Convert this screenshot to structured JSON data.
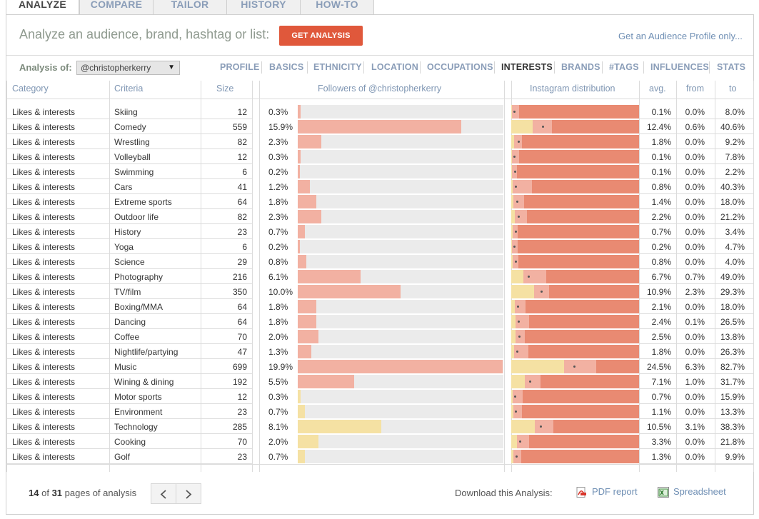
{
  "tabs": [
    {
      "label": "ANALYZE",
      "active": true
    },
    {
      "label": "COMPARE",
      "active": false
    },
    {
      "label": "TAILOR",
      "active": false
    },
    {
      "label": "HISTORY",
      "active": false
    },
    {
      "label": "HOW-TO",
      "active": false
    }
  ],
  "header": {
    "title": "Analyze an audience, brand, hashtag or list:",
    "button_label": "GET ANALYSIS",
    "profile_link": "Get an Audience Profile only..."
  },
  "analysis": {
    "label": "Analysis of:",
    "selected": "@christopherkerry"
  },
  "nav": [
    {
      "label": "PROFILE",
      "active": false
    },
    {
      "label": "BASICS",
      "active": false
    },
    {
      "label": "ETHNICITY",
      "active": false
    },
    {
      "label": "LOCATION",
      "active": false
    },
    {
      "label": "OCCUPATIONS",
      "active": false
    },
    {
      "label": "INTERESTS",
      "active": true
    },
    {
      "label": "BRANDS",
      "active": false
    },
    {
      "label": "#TAGS",
      "active": false
    },
    {
      "label": "INFLUENCES",
      "active": false
    },
    {
      "label": "STATS",
      "active": false
    }
  ],
  "columns": {
    "category": "Category",
    "criteria": "Criteria",
    "size": "Size",
    "followers": "Followers of @christopherkerry",
    "distribution": "Instagram distribution",
    "avg": "avg.",
    "from": "from",
    "to": "to"
  },
  "colors": {
    "high": "#e98a72",
    "high_track_light": "#f2b1a2",
    "low": "#f5e1a3",
    "accent": "#e0583b",
    "link": "#6f8fb4"
  },
  "rows": [
    {
      "category": "Likes & interests",
      "criteria": "Skiing",
      "size": "12",
      "pct": "0.3%",
      "value": 0.3,
      "high": true,
      "avg": "0.1%",
      "from": "0.0%",
      "to": "8.0%"
    },
    {
      "category": "Likes & interests",
      "criteria": "Comedy",
      "size": "559",
      "pct": "15.9%",
      "value": 15.9,
      "high": true,
      "avg": "12.4%",
      "from": "0.6%",
      "to": "40.6%"
    },
    {
      "category": "Likes & interests",
      "criteria": "Wrestling",
      "size": "82",
      "pct": "2.3%",
      "value": 2.3,
      "high": true,
      "avg": "1.8%",
      "from": "0.0%",
      "to": "9.2%"
    },
    {
      "category": "Likes & interests",
      "criteria": "Volleyball",
      "size": "12",
      "pct": "0.3%",
      "value": 0.3,
      "high": true,
      "avg": "0.1%",
      "from": "0.0%",
      "to": "7.8%"
    },
    {
      "category": "Likes & interests",
      "criteria": "Swimming",
      "size": "6",
      "pct": "0.2%",
      "value": 0.2,
      "high": true,
      "avg": "0.1%",
      "from": "0.0%",
      "to": "2.2%"
    },
    {
      "category": "Likes & interests",
      "criteria": "Cars",
      "size": "41",
      "pct": "1.2%",
      "value": 1.2,
      "high": true,
      "avg": "0.8%",
      "from": "0.0%",
      "to": "40.3%"
    },
    {
      "category": "Likes & interests",
      "criteria": "Extreme sports",
      "size": "64",
      "pct": "1.8%",
      "value": 1.8,
      "high": true,
      "avg": "1.4%",
      "from": "0.0%",
      "to": "18.0%"
    },
    {
      "category": "Likes & interests",
      "criteria": "Outdoor life",
      "size": "82",
      "pct": "2.3%",
      "value": 2.3,
      "high": true,
      "avg": "2.2%",
      "from": "0.0%",
      "to": "21.2%"
    },
    {
      "category": "Likes & interests",
      "criteria": "History",
      "size": "23",
      "pct": "0.7%",
      "value": 0.7,
      "high": true,
      "avg": "0.7%",
      "from": "0.0%",
      "to": "3.4%"
    },
    {
      "category": "Likes & interests",
      "criteria": "Yoga",
      "size": "6",
      "pct": "0.2%",
      "value": 0.2,
      "high": true,
      "avg": "0.2%",
      "from": "0.0%",
      "to": "4.7%"
    },
    {
      "category": "Likes & interests",
      "criteria": "Science",
      "size": "29",
      "pct": "0.8%",
      "value": 0.8,
      "high": true,
      "avg": "0.8%",
      "from": "0.0%",
      "to": "4.0%"
    },
    {
      "category": "Likes & interests",
      "criteria": "Photography",
      "size": "216",
      "pct": "6.1%",
      "value": 6.1,
      "high": true,
      "avg": "6.7%",
      "from": "0.7%",
      "to": "49.0%"
    },
    {
      "category": "Likes & interests",
      "criteria": "TV/film",
      "size": "350",
      "pct": "10.0%",
      "value": 10.0,
      "high": true,
      "avg": "10.9%",
      "from": "2.3%",
      "to": "29.3%"
    },
    {
      "category": "Likes & interests",
      "criteria": "Boxing/MMA",
      "size": "64",
      "pct": "1.8%",
      "value": 1.8,
      "high": true,
      "avg": "2.1%",
      "from": "0.0%",
      "to": "18.0%"
    },
    {
      "category": "Likes & interests",
      "criteria": "Dancing",
      "size": "64",
      "pct": "1.8%",
      "value": 1.8,
      "high": true,
      "avg": "2.4%",
      "from": "0.1%",
      "to": "26.5%"
    },
    {
      "category": "Likes & interests",
      "criteria": "Coffee",
      "size": "70",
      "pct": "2.0%",
      "value": 2.0,
      "high": true,
      "avg": "2.5%",
      "from": "0.0%",
      "to": "13.8%"
    },
    {
      "category": "Likes & interests",
      "criteria": "Nightlife/partying",
      "size": "47",
      "pct": "1.3%",
      "value": 1.3,
      "high": true,
      "avg": "1.8%",
      "from": "0.0%",
      "to": "26.3%"
    },
    {
      "category": "Likes & interests",
      "criteria": "Music",
      "size": "699",
      "pct": "19.9%",
      "value": 19.9,
      "high": true,
      "avg": "24.5%",
      "from": "6.3%",
      "to": "82.7%"
    },
    {
      "category": "Likes & interests",
      "criteria": "Wining & dining",
      "size": "192",
      "pct": "5.5%",
      "value": 5.5,
      "high": true,
      "avg": "7.1%",
      "from": "1.0%",
      "to": "31.7%"
    },
    {
      "category": "Likes & interests",
      "criteria": "Motor sports",
      "size": "12",
      "pct": "0.3%",
      "value": 0.3,
      "high": false,
      "avg": "0.7%",
      "from": "0.0%",
      "to": "15.9%"
    },
    {
      "category": "Likes & interests",
      "criteria": "Environment",
      "size": "23",
      "pct": "0.7%",
      "value": 0.7,
      "high": false,
      "avg": "1.1%",
      "from": "0.0%",
      "to": "13.3%"
    },
    {
      "category": "Likes & interests",
      "criteria": "Technology",
      "size": "285",
      "pct": "8.1%",
      "value": 8.1,
      "high": false,
      "avg": "10.5%",
      "from": "3.1%",
      "to": "38.3%"
    },
    {
      "category": "Likes & interests",
      "criteria": "Cooking",
      "size": "70",
      "pct": "2.0%",
      "value": 2.0,
      "high": false,
      "avg": "3.3%",
      "from": "0.0%",
      "to": "21.8%"
    },
    {
      "category": "Likes & interests",
      "criteria": "Golf",
      "size": "23",
      "pct": "0.7%",
      "value": 0.7,
      "high": false,
      "avg": "1.3%",
      "from": "0.0%",
      "to": "9.9%"
    }
  ],
  "footer": {
    "page_current": "14",
    "page_of": "of",
    "page_total": "31",
    "pages_suffix": "pages of analysis",
    "download_label": "Download this Analysis:",
    "pdf_label": "PDF report",
    "spreadsheet_label": "Spreadsheet"
  }
}
